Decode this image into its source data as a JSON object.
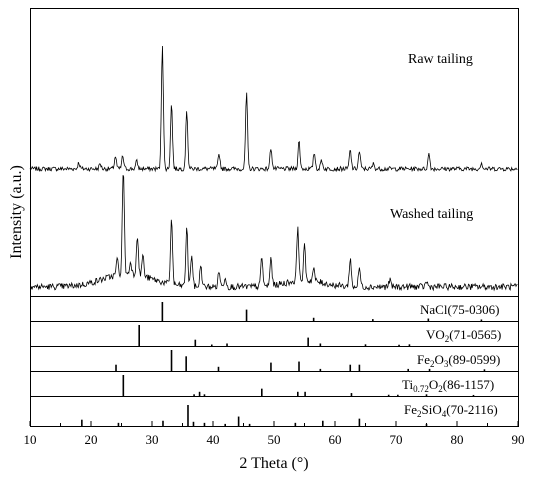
{
  "chart_data": {
    "type": "line",
    "xlabel": "2 Theta (°)",
    "ylabel": "Intensity (a.u.)",
    "xlim": [
      10,
      90
    ],
    "xticks": [
      10,
      20,
      30,
      40,
      50,
      60,
      70,
      80,
      90
    ],
    "grid": false,
    "series": [
      {
        "name": "Raw tailing",
        "peaks": [
          {
            "x": 18.0,
            "y": 0.05
          },
          {
            "x": 21.5,
            "y": 0.04
          },
          {
            "x": 24.0,
            "y": 0.1
          },
          {
            "x": 25.2,
            "y": 0.1
          },
          {
            "x": 27.5,
            "y": 0.06
          },
          {
            "x": 31.7,
            "y": 1.0
          },
          {
            "x": 33.2,
            "y": 0.52
          },
          {
            "x": 35.7,
            "y": 0.47
          },
          {
            "x": 41.0,
            "y": 0.12
          },
          {
            "x": 45.5,
            "y": 0.6
          },
          {
            "x": 49.5,
            "y": 0.17
          },
          {
            "x": 54.1,
            "y": 0.22
          },
          {
            "x": 56.6,
            "y": 0.13
          },
          {
            "x": 57.8,
            "y": 0.07
          },
          {
            "x": 62.5,
            "y": 0.15
          },
          {
            "x": 64.0,
            "y": 0.14
          },
          {
            "x": 66.3,
            "y": 0.04
          },
          {
            "x": 75.4,
            "y": 0.12
          },
          {
            "x": 84.0,
            "y": 0.05
          }
        ]
      },
      {
        "name": "Washed tailing",
        "peaks": [
          {
            "x": 24.3,
            "y": 0.15
          },
          {
            "x": 25.3,
            "y": 1.0
          },
          {
            "x": 26.5,
            "y": 0.12
          },
          {
            "x": 27.6,
            "y": 0.38
          },
          {
            "x": 28.5,
            "y": 0.2
          },
          {
            "x": 33.2,
            "y": 0.62
          },
          {
            "x": 35.7,
            "y": 0.55
          },
          {
            "x": 36.5,
            "y": 0.3
          },
          {
            "x": 38.0,
            "y": 0.2
          },
          {
            "x": 41.0,
            "y": 0.15
          },
          {
            "x": 42.0,
            "y": 0.1
          },
          {
            "x": 48.0,
            "y": 0.28
          },
          {
            "x": 49.5,
            "y": 0.26
          },
          {
            "x": 53.9,
            "y": 0.52
          },
          {
            "x": 55.0,
            "y": 0.32
          },
          {
            "x": 56.5,
            "y": 0.12
          },
          {
            "x": 62.5,
            "y": 0.27
          },
          {
            "x": 64.0,
            "y": 0.18
          },
          {
            "x": 69.0,
            "y": 0.06
          },
          {
            "x": 75.0,
            "y": 0.05
          }
        ]
      }
    ],
    "reference_patterns": [
      {
        "name": "NaCl(75-0306)",
        "lines": [
          {
            "x": 31.7,
            "y": 1.0
          },
          {
            "x": 45.5,
            "y": 0.6
          },
          {
            "x": 56.5,
            "y": 0.17
          },
          {
            "x": 66.2,
            "y": 0.1
          },
          {
            "x": 75.3,
            "y": 0.13
          },
          {
            "x": 84.0,
            "y": 0.08
          }
        ]
      },
      {
        "name": "VO2(71-0565)",
        "lines": [
          {
            "x": 27.9,
            "y": 1.0
          },
          {
            "x": 37.1,
            "y": 0.3
          },
          {
            "x": 39.8,
            "y": 0.07
          },
          {
            "x": 42.3,
            "y": 0.12
          },
          {
            "x": 55.6,
            "y": 0.4
          },
          {
            "x": 57.6,
            "y": 0.12
          },
          {
            "x": 65.0,
            "y": 0.08
          },
          {
            "x": 70.5,
            "y": 0.06
          },
          {
            "x": 72.2,
            "y": 0.08
          }
        ]
      },
      {
        "name": "Fe2O3(89-0599)",
        "lines": [
          {
            "x": 24.1,
            "y": 0.3
          },
          {
            "x": 33.2,
            "y": 1.0
          },
          {
            "x": 35.6,
            "y": 0.7
          },
          {
            "x": 40.9,
            "y": 0.2
          },
          {
            "x": 49.5,
            "y": 0.4
          },
          {
            "x": 54.1,
            "y": 0.45
          },
          {
            "x": 57.6,
            "y": 0.1
          },
          {
            "x": 62.5,
            "y": 0.3
          },
          {
            "x": 64.0,
            "y": 0.3
          },
          {
            "x": 72.0,
            "y": 0.1
          },
          {
            "x": 75.5,
            "y": 0.1
          },
          {
            "x": 84.5,
            "y": 0.08
          }
        ]
      },
      {
        "name": "Ti0.72O2(86-1157)",
        "lines": [
          {
            "x": 25.3,
            "y": 1.0
          },
          {
            "x": 36.9,
            "y": 0.08
          },
          {
            "x": 37.8,
            "y": 0.2
          },
          {
            "x": 38.6,
            "y": 0.08
          },
          {
            "x": 48.0,
            "y": 0.35
          },
          {
            "x": 53.9,
            "y": 0.2
          },
          {
            "x": 55.1,
            "y": 0.2
          },
          {
            "x": 62.7,
            "y": 0.14
          },
          {
            "x": 68.8,
            "y": 0.06
          },
          {
            "x": 70.3,
            "y": 0.06
          },
          {
            "x": 75.0,
            "y": 0.08
          },
          {
            "x": 82.7,
            "y": 0.05
          }
        ]
      },
      {
        "name": "Fe2SiO4(70-2116)",
        "lines": [
          {
            "x": 18.5,
            "y": 0.3
          },
          {
            "x": 24.5,
            "y": 0.15
          },
          {
            "x": 31.8,
            "y": 0.25
          },
          {
            "x": 35.9,
            "y": 1.0
          },
          {
            "x": 36.8,
            "y": 0.2
          },
          {
            "x": 38.6,
            "y": 0.15
          },
          {
            "x": 42.0,
            "y": 0.1
          },
          {
            "x": 44.2,
            "y": 0.45
          },
          {
            "x": 46.0,
            "y": 0.1
          },
          {
            "x": 53.5,
            "y": 0.15
          },
          {
            "x": 58.0,
            "y": 0.25
          },
          {
            "x": 64.0,
            "y": 0.35
          },
          {
            "x": 75.0,
            "y": 0.1
          }
        ]
      }
    ]
  },
  "labels": {
    "series_1": "Raw tailing",
    "series_2": "Washed tailing",
    "ref_1": {
      "main": "NaCl(75-0306)"
    },
    "ref_2": {
      "a": "VO",
      "s1": "2",
      "b": "(71-0565)"
    },
    "ref_3": {
      "a": "Fe",
      "s1": "2",
      "b": "O",
      "s2": "3",
      "c": "(89-0599)"
    },
    "ref_4": {
      "a": "Ti",
      "s1": "0.72",
      "b": "O",
      "s2": "2",
      "c": "(86-1157)"
    },
    "ref_5": {
      "a": "Fe",
      "s1": "2",
      "b": "SiO",
      "s2": "4",
      "c": "(70-2116)"
    }
  },
  "colors": {
    "line": "#000000",
    "background": "#ffffff"
  }
}
